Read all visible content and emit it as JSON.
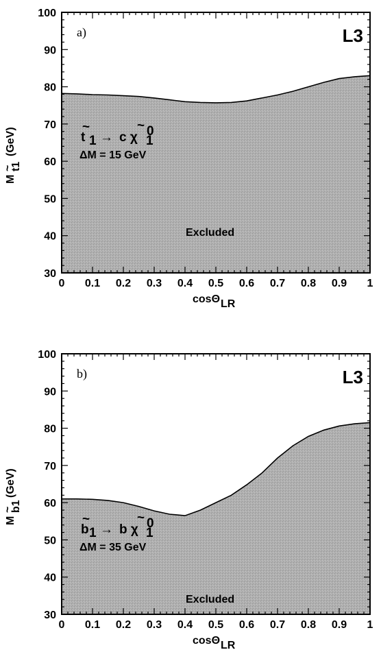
{
  "chart_data": [
    {
      "type": "area",
      "panel_label": "a)",
      "experiment": "L3",
      "ylabel": "M",
      "ylabel_sub": "t1",
      "ylabel_unit": "(GeV)",
      "xlabel": "cosΘ",
      "xlabel_sub": "LR",
      "process_lhs": "t",
      "process_lhs_sub": "1",
      "process_arrow": "→",
      "process_rhs": "c χ",
      "process_rhs_sub": "1",
      "process_rhs_sup": "0",
      "delta_m": "ΔM = 15 GeV",
      "region_label": "Excluded",
      "xlim": [
        0,
        1
      ],
      "ylim": [
        30,
        100
      ],
      "x_ticks": [
        "0",
        "0.1",
        "0.2",
        "0.3",
        "0.4",
        "0.5",
        "0.6",
        "0.7",
        "0.8",
        "0.9",
        "1"
      ],
      "y_ticks": [
        "30",
        "40",
        "50",
        "60",
        "70",
        "80",
        "90",
        "100"
      ],
      "x": [
        0,
        0.05,
        0.1,
        0.15,
        0.2,
        0.25,
        0.3,
        0.35,
        0.4,
        0.45,
        0.5,
        0.55,
        0.6,
        0.65,
        0.7,
        0.75,
        0.8,
        0.85,
        0.9,
        0.95,
        1.0
      ],
      "values": [
        78.2,
        78.1,
        77.9,
        77.8,
        77.6,
        77.4,
        77.0,
        76.5,
        76.0,
        75.8,
        75.7,
        75.8,
        76.2,
        77.0,
        77.8,
        78.8,
        80.0,
        81.2,
        82.2,
        82.7,
        83.0
      ],
      "fill_color": "#a8a8a8"
    },
    {
      "type": "area",
      "panel_label": "b)",
      "experiment": "L3",
      "ylabel": "M",
      "ylabel_sub": "b1",
      "ylabel_unit": "(GeV)",
      "xlabel": "cosΘ",
      "xlabel_sub": "LR",
      "process_lhs": "b",
      "process_lhs_sub": "1",
      "process_arrow": "→",
      "process_rhs": "b χ",
      "process_rhs_sub": "1",
      "process_rhs_sup": "0",
      "delta_m": "ΔM = 35 GeV",
      "region_label": "Excluded",
      "xlim": [
        0,
        1
      ],
      "ylim": [
        30,
        100
      ],
      "x_ticks": [
        "0",
        "0.1",
        "0.2",
        "0.3",
        "0.4",
        "0.5",
        "0.6",
        "0.7",
        "0.8",
        "0.9",
        "1"
      ],
      "y_ticks": [
        "30",
        "40",
        "50",
        "60",
        "70",
        "80",
        "90",
        "100"
      ],
      "x": [
        0,
        0.05,
        0.1,
        0.15,
        0.2,
        0.25,
        0.3,
        0.35,
        0.4,
        0.45,
        0.5,
        0.55,
        0.6,
        0.65,
        0.7,
        0.75,
        0.8,
        0.85,
        0.9,
        0.95,
        1.0
      ],
      "values": [
        61.0,
        61.0,
        60.9,
        60.6,
        60.0,
        59.0,
        57.8,
        56.9,
        56.5,
        58.0,
        60.0,
        62.0,
        64.8,
        68.0,
        72.0,
        75.3,
        77.8,
        79.5,
        80.6,
        81.2,
        81.5
      ],
      "fill_color": "#a8a8a8"
    }
  ]
}
